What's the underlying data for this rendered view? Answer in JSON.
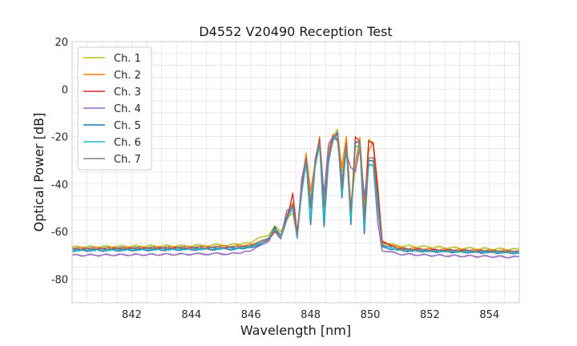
{
  "chart_data": {
    "type": "line",
    "title": "D4552 V20490 Reception Test",
    "xlabel": "Wavelength [nm]",
    "ylabel": "Optical Power [dB]",
    "xlim": [
      840.0,
      855.0
    ],
    "ylim": [
      -90,
      20
    ],
    "xticks": [
      842,
      844,
      846,
      848,
      850,
      852,
      854
    ],
    "yticks": [
      -80,
      -60,
      -40,
      -20,
      0,
      20
    ],
    "xminor_step": 0.5,
    "yminor_step": 5,
    "grid": true,
    "legend_position": "top-left",
    "series": [
      {
        "name": "Ch. 1",
        "color": "#bcbd22",
        "x": [
          840.0,
          842.0,
          844.0,
          845.5,
          846.0,
          846.3,
          846.6,
          846.8,
          847.0,
          847.2,
          847.4,
          847.55,
          847.7,
          847.85,
          848.0,
          848.15,
          848.3,
          848.45,
          848.6,
          848.75,
          848.9,
          849.05,
          849.2,
          849.35,
          849.5,
          849.65,
          849.8,
          849.95,
          850.1,
          850.25,
          850.4,
          851.0,
          852.0,
          853.0,
          854.0,
          855.0
        ],
        "y": [
          -66.5,
          -66.2,
          -66.0,
          -65.5,
          -64.5,
          -62.5,
          -61.5,
          -57.5,
          -60.0,
          -55.0,
          -52.0,
          -62.0,
          -42.0,
          -28.0,
          -46.0,
          -33.0,
          -24.0,
          -47.0,
          -28.0,
          -20.0,
          -17.0,
          -35.0,
          -21.0,
          -52.0,
          -33.0,
          -22.0,
          -50.0,
          -21.0,
          -23.0,
          -45.0,
          -65.0,
          -66.0,
          -66.5,
          -67.0,
          -67.3,
          -67.5
        ]
      },
      {
        "name": "Ch. 2",
        "color": "#ff7f0e",
        "x": [
          840.0,
          842.0,
          844.0,
          845.5,
          846.0,
          846.3,
          846.6,
          846.8,
          847.0,
          847.2,
          847.4,
          847.55,
          847.7,
          847.85,
          848.0,
          848.15,
          848.3,
          848.45,
          848.6,
          848.75,
          848.9,
          849.05,
          849.2,
          849.35,
          849.5,
          849.65,
          849.8,
          849.95,
          850.1,
          850.25,
          850.4,
          851.0,
          852.0,
          853.0,
          854.0,
          855.0
        ],
        "y": [
          -67.0,
          -66.8,
          -66.5,
          -66.2,
          -65.5,
          -64.0,
          -63.0,
          -59.0,
          -62.0,
          -53.0,
          -48.0,
          -60.0,
          -40.0,
          -27.0,
          -43.0,
          -31.0,
          -20.0,
          -44.0,
          -26.0,
          -19.0,
          -19.5,
          -33.0,
          -20.0,
          -49.0,
          -31.0,
          -20.5,
          -47.0,
          -26.0,
          -22.0,
          -40.0,
          -64.0,
          -67.0,
          -67.5,
          -67.8,
          -68.0,
          -68.3
        ]
      },
      {
        "name": "Ch. 3",
        "color": "#d62728",
        "x": [
          840.0,
          842.0,
          844.0,
          845.5,
          846.0,
          846.3,
          846.6,
          846.8,
          847.0,
          847.2,
          847.4,
          847.55,
          847.7,
          847.85,
          848.0,
          848.15,
          848.3,
          848.45,
          848.6,
          848.75,
          848.9,
          849.05,
          849.2,
          849.35,
          849.5,
          849.65,
          849.8,
          849.95,
          850.1,
          850.25,
          850.4,
          851.0,
          852.0,
          853.0,
          854.0,
          855.0
        ],
        "y": [
          -67.5,
          -67.2,
          -67.0,
          -66.8,
          -66.0,
          -65.0,
          -63.5,
          -60.0,
          -63.0,
          -55.0,
          -44.0,
          -61.0,
          -41.0,
          -30.0,
          -57.0,
          -30.0,
          -21.0,
          -55.0,
          -29.0,
          -20.0,
          -21.0,
          -40.0,
          -23.0,
          -55.0,
          -20.0,
          -22.0,
          -55.0,
          -22.0,
          -23.0,
          -42.0,
          -64.5,
          -67.2,
          -67.8,
          -68.0,
          -68.3,
          -68.6
        ]
      },
      {
        "name": "Ch. 4",
        "color": "#9467bd",
        "x": [
          840.0,
          842.0,
          844.0,
          845.5,
          846.0,
          846.3,
          846.6,
          846.8,
          847.0,
          847.2,
          847.4,
          847.55,
          847.7,
          847.85,
          848.0,
          848.15,
          848.3,
          848.45,
          848.6,
          848.75,
          848.9,
          849.05,
          849.2,
          849.35,
          849.5,
          849.65,
          849.8,
          849.95,
          850.1,
          850.25,
          850.4,
          851.0,
          852.0,
          853.0,
          854.0,
          855.0
        ],
        "y": [
          -70.0,
          -69.8,
          -69.5,
          -69.3,
          -68.0,
          -66.0,
          -64.0,
          -59.0,
          -63.0,
          -51.0,
          -50.0,
          -63.0,
          -38.0,
          -29.0,
          -48.0,
          -32.0,
          -22.0,
          -45.0,
          -23.0,
          -20.0,
          -22.0,
          -38.0,
          -27.0,
          -33.0,
          -35.0,
          -25.0,
          -45.0,
          -32.0,
          -32.0,
          -56.0,
          -68.0,
          -69.5,
          -70.0,
          -70.3,
          -70.5,
          -70.8
        ]
      },
      {
        "name": "Ch. 5",
        "color": "#1f77b4",
        "x": [
          840.0,
          842.0,
          844.0,
          845.5,
          846.0,
          846.3,
          846.6,
          846.8,
          847.0,
          847.2,
          847.4,
          847.55,
          847.7,
          847.85,
          848.0,
          848.15,
          848.3,
          848.45,
          848.6,
          848.75,
          848.9,
          849.05,
          849.2,
          849.35,
          849.5,
          849.65,
          849.8,
          849.95,
          850.1,
          850.25,
          850.4,
          851.0,
          852.0,
          853.0,
          854.0,
          855.0
        ],
        "y": [
          -68.0,
          -67.8,
          -67.5,
          -67.3,
          -66.8,
          -65.5,
          -63.0,
          -58.0,
          -62.0,
          -54.0,
          -49.0,
          -62.0,
          -43.0,
          -30.5,
          -57.0,
          -32.0,
          -23.0,
          -58.0,
          -31.0,
          -21.0,
          -18.0,
          -46.0,
          -24.0,
          -57.0,
          -22.0,
          -22.5,
          -61.0,
          -30.0,
          -30.0,
          -45.0,
          -66.5,
          -68.0,
          -68.3,
          -68.6,
          -68.8,
          -69.0
        ]
      },
      {
        "name": "Ch. 6",
        "color": "#17becf",
        "x": [
          840.0,
          842.0,
          844.0,
          845.5,
          846.0,
          846.3,
          846.6,
          846.8,
          847.0,
          847.2,
          847.4,
          847.55,
          847.7,
          847.85,
          848.0,
          848.15,
          848.3,
          848.45,
          848.6,
          848.75,
          848.9,
          849.05,
          849.2,
          849.35,
          849.5,
          849.65,
          849.8,
          849.95,
          850.1,
          850.25,
          850.4,
          851.0,
          852.0,
          853.0,
          854.0,
          855.0
        ],
        "y": [
          -67.8,
          -67.6,
          -67.3,
          -67.0,
          -66.5,
          -65.0,
          -63.0,
          -59.0,
          -62.5,
          -55.0,
          -50.0,
          -62.5,
          -44.0,
          -31.0,
          -55.0,
          -32.5,
          -23.5,
          -55.0,
          -30.0,
          -22.0,
          -19.0,
          -44.0,
          -25.0,
          -55.0,
          -24.0,
          -24.0,
          -58.0,
          -32.0,
          -32.0,
          -50.0,
          -66.0,
          -67.8,
          -68.2,
          -68.4,
          -68.6,
          -68.8
        ]
      },
      {
        "name": "Ch. 7",
        "color": "#7f7f7f",
        "x": [
          840.0,
          842.0,
          844.0,
          845.5,
          846.0,
          846.3,
          846.6,
          846.8,
          847.0,
          847.2,
          847.4,
          847.55,
          847.7,
          847.85,
          848.0,
          848.15,
          848.3,
          848.45,
          848.6,
          848.75,
          848.9,
          849.05,
          849.2,
          849.35,
          849.5,
          849.65,
          849.8,
          849.95,
          850.1,
          850.25,
          850.4,
          851.0,
          852.0,
          853.0,
          854.0,
          855.0
        ],
        "y": [
          -67.3,
          -67.0,
          -66.8,
          -66.5,
          -66.0,
          -64.5,
          -62.5,
          -58.5,
          -61.5,
          -54.5,
          -48.5,
          -61.5,
          -42.5,
          -29.5,
          -50.0,
          -31.0,
          -22.0,
          -50.0,
          -29.0,
          -21.0,
          -19.0,
          -42.0,
          -23.0,
          -52.0,
          -23.0,
          -22.0,
          -55.0,
          -29.0,
          -29.0,
          -47.0,
          -65.5,
          -67.5,
          -68.0,
          -68.2,
          -68.4,
          -68.6
        ]
      }
    ]
  }
}
